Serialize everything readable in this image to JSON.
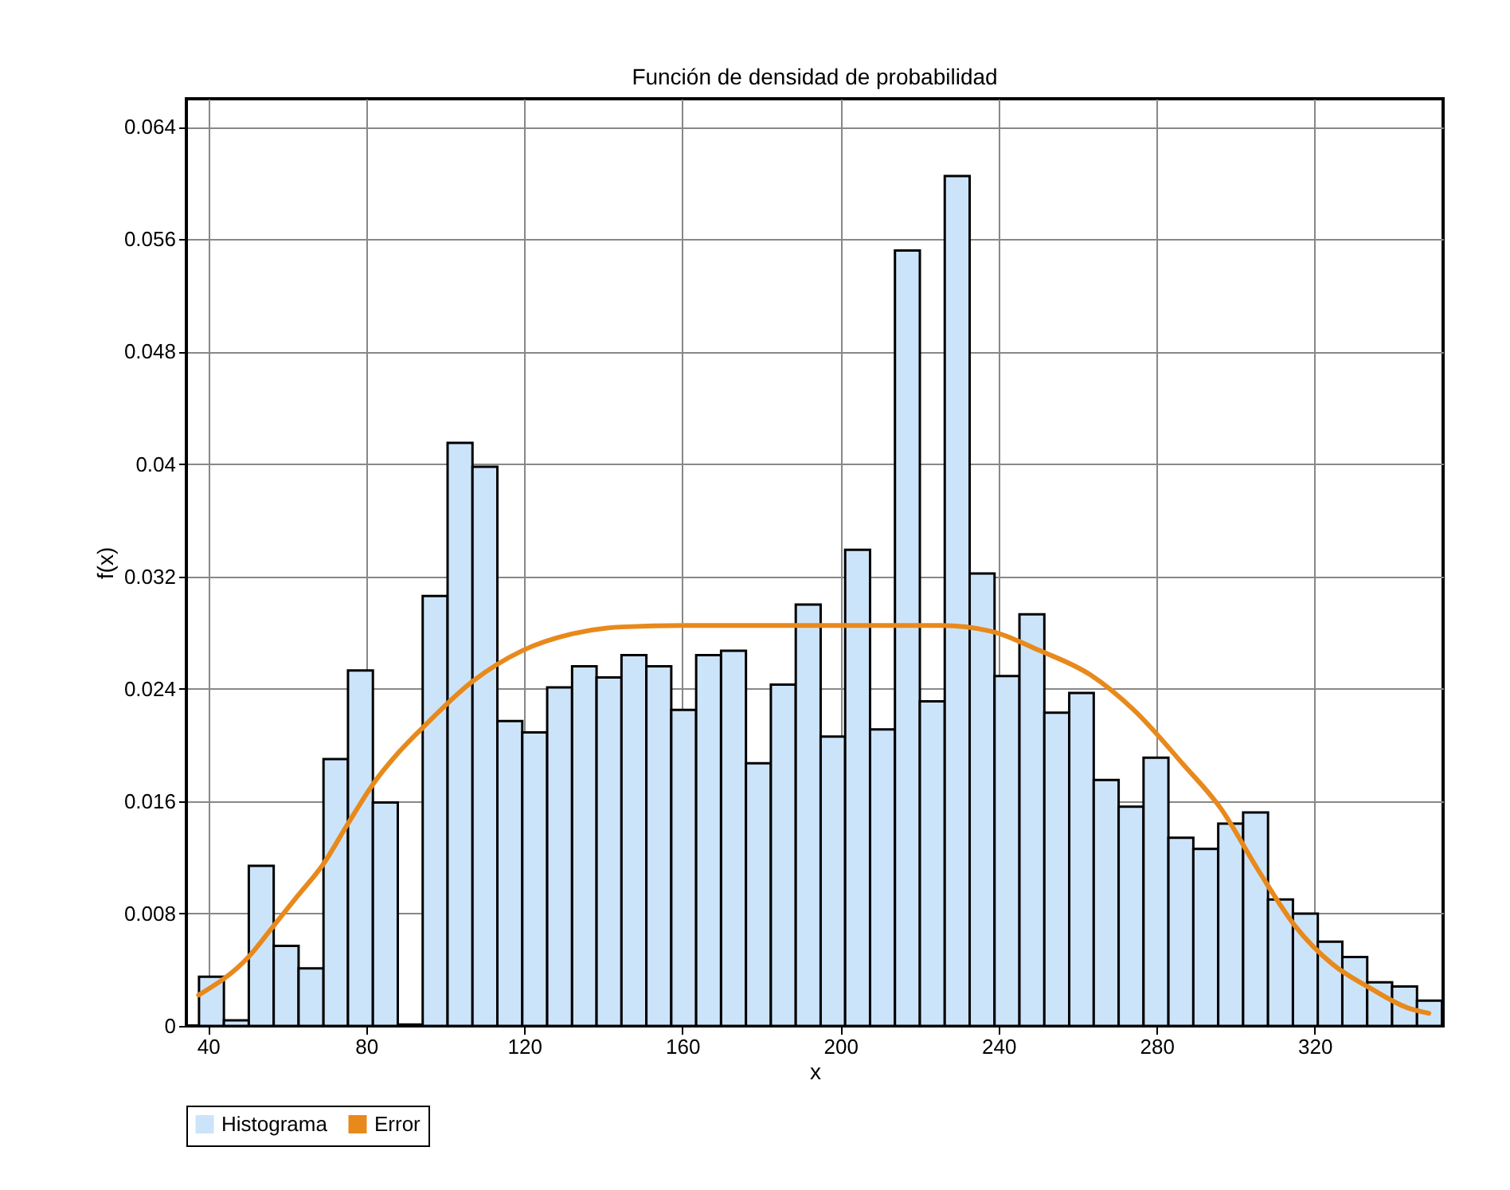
{
  "chart_data": {
    "type": "histogram",
    "title": "Función de densidad de probabilidad",
    "xlabel": "x",
    "ylabel": "f(x)",
    "bins": [
      37.7,
      44.0,
      50.3,
      56.6,
      62.9,
      69.2,
      75.4,
      81.7,
      88.0,
      94.3,
      100.6,
      106.9,
      113.2,
      119.5,
      125.8,
      132.1,
      138.3,
      144.6,
      150.9,
      157.2,
      163.5,
      169.8,
      176.1,
      182.4,
      188.7,
      195.0,
      201.2,
      207.5,
      213.8,
      220.1,
      226.4,
      232.7,
      239.0,
      245.3,
      251.6,
      257.9,
      264.1,
      270.4,
      276.7,
      283.0,
      289.3,
      295.6,
      301.9,
      308.2,
      314.5,
      320.8,
      327.0,
      333.3,
      339.6,
      345.9,
      352.2
    ],
    "series": [
      {
        "name": "Histograma",
        "color": "#cce4fa",
        "values": [
          0.0035,
          0.0004,
          0.0114,
          0.0057,
          0.0041,
          0.019,
          0.0253,
          0.0159,
          0.0001,
          0.0306,
          0.0415,
          0.0398,
          0.0217,
          0.0209,
          0.0241,
          0.0256,
          0.0248,
          0.0264,
          0.0256,
          0.0225,
          0.0264,
          0.0267,
          0.0187,
          0.0243,
          0.03,
          0.0206,
          0.0339,
          0.0211,
          0.0552,
          0.0231,
          0.0605,
          0.0322,
          0.0249,
          0.0293,
          0.0223,
          0.0237,
          0.0175,
          0.0156,
          0.0191,
          0.0134,
          0.0126,
          0.0144,
          0.0152,
          0.009,
          0.008,
          0.006,
          0.0049,
          0.0031,
          0.0028,
          0.0018
        ]
      },
      {
        "name": "Error",
        "type": "line",
        "color": "#e8891c",
        "x": [
          37.6,
          50.2,
          56.5,
          62.8,
          69.1,
          75.4,
          81.7,
          88.0,
          94.2,
          106.8,
          119.4,
          132,
          144.6,
          160.3,
          200,
          225.5,
          238,
          250.6,
          263.2,
          274.2,
          286.8,
          296.2,
          305.7,
          315.1,
          324.5,
          334,
          343.4,
          348.9
        ],
        "values": [
          0.0022,
          0.0049,
          0.0071,
          0.0093,
          0.0115,
          0.0144,
          0.0172,
          0.0194,
          0.0212,
          0.0245,
          0.0267,
          0.0279,
          0.0284,
          0.0285,
          0.0285,
          0.0285,
          0.0281,
          0.0267,
          0.025,
          0.0225,
          0.0186,
          0.0155,
          0.0111,
          0.0071,
          0.0044,
          0.0027,
          0.0013,
          0.0009
        ]
      }
    ],
    "xlim": [
      34.5,
      352.5
    ],
    "xticks": [
      40,
      80,
      120,
      160,
      200,
      240,
      280,
      320
    ],
    "ylim": [
      0,
      0.066
    ],
    "yticks": [
      0,
      0.008,
      0.016,
      0.024,
      0.032,
      0.04,
      0.048,
      0.056,
      0.064
    ],
    "grid": true,
    "legend": "bottom"
  }
}
